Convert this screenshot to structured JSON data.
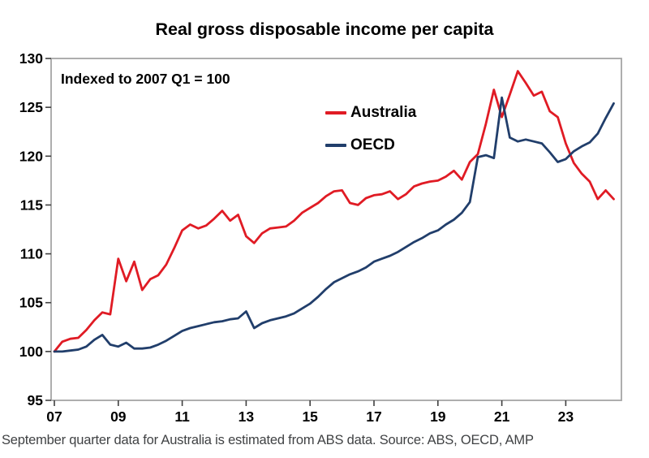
{
  "title": "Real gross disposable income per capita",
  "annotation": "Indexed to 2007 Q1 = 100",
  "footer": "September quarter data for Australia is estimated from ABS data. Source: ABS, OECD, AMP",
  "legend": [
    {
      "label": "Australia"
    },
    {
      "label": "OECD"
    }
  ],
  "chart_data": {
    "type": "line",
    "title": "Real gross disposable income per capita",
    "subtitle": "Indexed to 2007 Q1 = 100",
    "x_unit": "quarterly",
    "x_start": "2007Q1",
    "x_end": "2024Q3",
    "x_tick_labels": [
      "07",
      "09",
      "11",
      "13",
      "15",
      "17",
      "19",
      "21",
      "23"
    ],
    "x_tick_years": [
      2007,
      2009,
      2011,
      2013,
      2015,
      2017,
      2019,
      2021,
      2023
    ],
    "ylim": [
      95,
      130
    ],
    "y_ticks": [
      95,
      100,
      105,
      110,
      115,
      120,
      125,
      130
    ],
    "grid": false,
    "legend_position": "inside-top-center",
    "series": [
      {
        "name": "Australia",
        "color": "#e01b24",
        "values": [
          100.0,
          101.0,
          101.3,
          101.4,
          102.2,
          103.2,
          104.0,
          103.8,
          109.5,
          107.2,
          109.2,
          106.3,
          107.4,
          107.8,
          108.9,
          110.6,
          112.4,
          113.0,
          112.6,
          112.9,
          113.6,
          114.4,
          113.4,
          114.0,
          111.8,
          111.1,
          112.1,
          112.6,
          112.7,
          112.8,
          113.4,
          114.2,
          114.7,
          115.2,
          115.9,
          116.4,
          116.5,
          115.2,
          115.0,
          115.7,
          116.0,
          116.1,
          116.4,
          115.6,
          116.1,
          116.9,
          117.2,
          117.4,
          117.5,
          117.9,
          118.5,
          117.6,
          119.4,
          120.2,
          123.3,
          126.8,
          124.0,
          126.3,
          128.7,
          127.5,
          126.2,
          126.6,
          124.6,
          124.0,
          121.3,
          119.3,
          118.2,
          117.4,
          115.6,
          116.5,
          115.6
        ]
      },
      {
        "name": "OECD",
        "color": "#213e6b",
        "values": [
          100.0,
          100.0,
          100.1,
          100.2,
          100.5,
          101.2,
          101.7,
          100.7,
          100.5,
          100.9,
          100.3,
          100.3,
          100.4,
          100.7,
          101.1,
          101.6,
          102.1,
          102.4,
          102.6,
          102.8,
          103.0,
          103.1,
          103.3,
          103.4,
          104.1,
          102.4,
          102.9,
          103.2,
          103.4,
          103.6,
          103.9,
          104.4,
          104.9,
          105.6,
          106.4,
          107.1,
          107.5,
          107.9,
          108.2,
          108.6,
          109.2,
          109.5,
          109.8,
          110.2,
          110.7,
          111.2,
          111.6,
          112.1,
          112.4,
          113.0,
          113.5,
          114.2,
          115.3,
          119.9,
          120.1,
          119.8,
          126.0,
          121.9,
          121.5,
          121.7,
          121.5,
          121.3,
          120.4,
          119.4,
          119.7,
          120.5,
          121.0,
          121.4,
          122.3,
          123.9,
          125.4
        ]
      }
    ]
  }
}
